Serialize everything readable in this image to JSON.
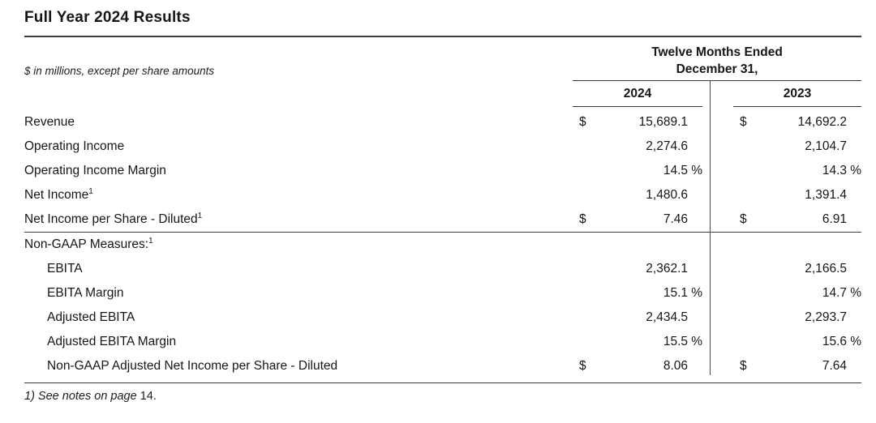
{
  "page": {
    "title": "Full Year 2024 Results",
    "subtitle": "$ in millions, except per share amounts",
    "footnote_italic": "1) See notes on page",
    "footnote_plain": "14."
  },
  "colors": {
    "text": "#161616",
    "rule": "#3d3d3d",
    "background": "#ffffff"
  },
  "table": {
    "header": {
      "period_line1": "Twelve Months Ended",
      "period_line2": "December 31,",
      "col_2024": "2024",
      "col_2023": "2023"
    },
    "rows": [
      {
        "label": "Revenue",
        "sup": "",
        "v2024": {
          "sym": "$",
          "num": "15,689.1",
          "suffix": ""
        },
        "v2023": {
          "sym": "$",
          "num": "14,692.2",
          "suffix": ""
        }
      },
      {
        "label": "Operating Income",
        "sup": "",
        "v2024": {
          "sym": "",
          "num": "2,274.6",
          "suffix": ""
        },
        "v2023": {
          "sym": "",
          "num": "2,104.7",
          "suffix": ""
        }
      },
      {
        "label": "Operating Income Margin",
        "sup": "",
        "v2024": {
          "sym": "",
          "num": "14.5",
          "suffix": "%"
        },
        "v2023": {
          "sym": "",
          "num": "14.3",
          "suffix": "%"
        }
      },
      {
        "label": "Net Income",
        "sup": "1",
        "v2024": {
          "sym": "",
          "num": "1,480.6",
          "suffix": ""
        },
        "v2023": {
          "sym": "",
          "num": "1,391.4",
          "suffix": ""
        }
      },
      {
        "label": "Net Income per Share - Diluted",
        "sup": "1",
        "v2024": {
          "sym": "$",
          "num": "7.46",
          "suffix": ""
        },
        "v2023": {
          "sym": "$",
          "num": "6.91",
          "suffix": ""
        }
      }
    ],
    "section_header": {
      "label": "Non-GAAP Measures:",
      "sup": "1"
    },
    "nongaap_rows": [
      {
        "label": "EBITA",
        "sup": "",
        "v2024": {
          "sym": "",
          "num": "2,362.1",
          "suffix": ""
        },
        "v2023": {
          "sym": "",
          "num": "2,166.5",
          "suffix": ""
        }
      },
      {
        "label": "EBITA Margin",
        "sup": "",
        "v2024": {
          "sym": "",
          "num": "15.1",
          "suffix": "%"
        },
        "v2023": {
          "sym": "",
          "num": "14.7",
          "suffix": "%"
        }
      },
      {
        "label": "Adjusted EBITA",
        "sup": "",
        "v2024": {
          "sym": "",
          "num": "2,434.5",
          "suffix": ""
        },
        "v2023": {
          "sym": "",
          "num": "2,293.7",
          "suffix": ""
        }
      },
      {
        "label": "Adjusted EBITA Margin",
        "sup": "",
        "v2024": {
          "sym": "",
          "num": "15.5",
          "suffix": "%"
        },
        "v2023": {
          "sym": "",
          "num": "15.6",
          "suffix": "%"
        }
      },
      {
        "label": "Non-GAAP Adjusted Net Income per Share - Diluted",
        "sup": "",
        "v2024": {
          "sym": "$",
          "num": "8.06",
          "suffix": ""
        },
        "v2023": {
          "sym": "$",
          "num": "7.64",
          "suffix": ""
        }
      }
    ]
  }
}
